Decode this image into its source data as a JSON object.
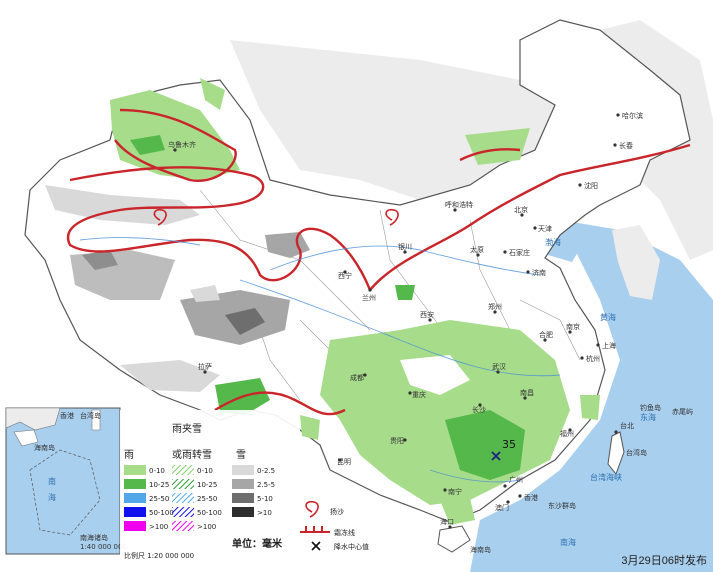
{
  "publish_time": "3月29日06时发布",
  "colors": {
    "sea": "#a9cfee",
    "land": "#ffffff",
    "neighbor": "#ececec",
    "rain_light": "#a6dc8a",
    "rain_moderate": "#55b84a",
    "rain_heavy": "#2f8a3c",
    "snow_light": "#d9d9d9",
    "snow_moderate": "#a6a6a6",
    "snow_heavy": "#6e6e6e",
    "freeze_line": "#c9252b"
  },
  "legend": {
    "title_rain": "雨",
    "title_mixed_1": "雨夹雪",
    "title_mixed_2": "或雨转雪",
    "title_snow": "雪",
    "rain_levels": [
      "0-10",
      "10-25",
      "25-50",
      "50-100",
      ">100"
    ],
    "mixed_levels": [
      "0-10",
      "10-25",
      "25-50",
      "50-100",
      ">100"
    ],
    "snow_levels": [
      "0-2.5",
      "2.5-5",
      "5-10",
      ">10"
    ],
    "unit": "单位：毫米",
    "freeze_line_label": "霜冻线",
    "center_label": "降水中心值",
    "sandstorm_label": "扬沙",
    "scale": "比例尺   1:20 000 000",
    "inset_scale": "1:40 000 000"
  },
  "precip_center": {
    "value": "35"
  },
  "inset": {
    "title": "南海诸岛",
    "labels": [
      "香港",
      "台湾岛",
      "海南岛",
      "南",
      "海"
    ]
  },
  "seas": [
    "渤海",
    "黄海",
    "东海",
    "南海",
    "台湾海峡"
  ],
  "islands": [
    "台湾岛",
    "海南岛",
    "钓鱼岛",
    "赤尾屿",
    "东沙群岛"
  ],
  "cities": [
    "哈尔滨",
    "长春",
    "沈阳",
    "呼和浩特",
    "北京",
    "天津",
    "石家庄",
    "太原",
    "济南",
    "郑州",
    "西安",
    "兰州",
    "西宁",
    "银川",
    "乌鲁木齐",
    "拉萨",
    "成都",
    "重庆",
    "贵阳",
    "昆明",
    "南宁",
    "广州",
    "长沙",
    "武汉",
    "南昌",
    "合肥",
    "南京",
    "杭州",
    "上海",
    "福州",
    "台北",
    "香港",
    "澳门",
    "海口"
  ]
}
